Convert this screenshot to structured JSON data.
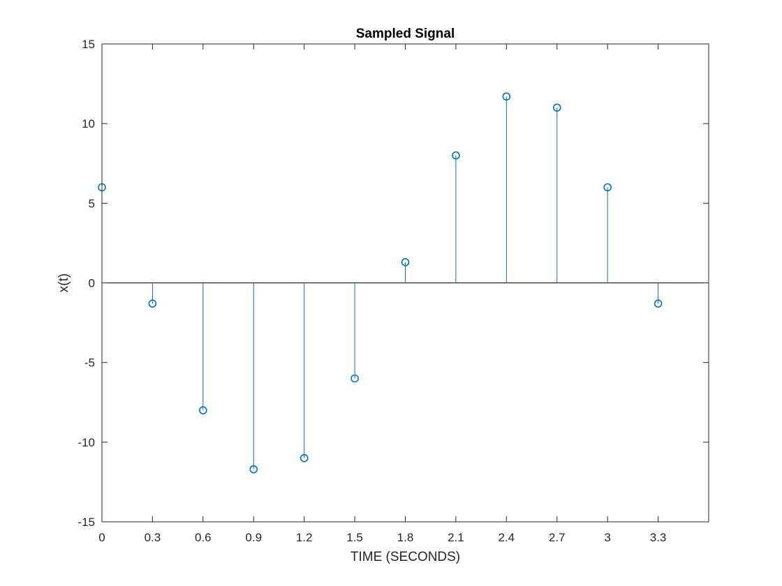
{
  "chart_data": {
    "type": "stem",
    "title": "Sampled Signal",
    "xlabel": "TIME (SECONDS)",
    "ylabel": "x(t)",
    "xlim": [
      0,
      3.6
    ],
    "ylim": [
      -15,
      15
    ],
    "xticks": [
      0,
      0.3,
      0.6,
      0.9,
      1.2,
      1.5,
      1.8,
      2.1,
      2.4,
      2.7,
      3,
      3.3
    ],
    "xtick_labels": [
      "0",
      "0.3",
      "0.6",
      "0.9",
      "1.2",
      "1.5",
      "1.8",
      "2.1",
      "2.4",
      "2.7",
      "3",
      "3.3"
    ],
    "yticks": [
      -15,
      -10,
      -5,
      0,
      5,
      10,
      15
    ],
    "ytick_labels": [
      "-15",
      "-10",
      "-5",
      "0",
      "5",
      "10",
      "15"
    ],
    "grid": false,
    "baseline": 0,
    "series": [
      {
        "color": "#0072BD",
        "marker": "circle-open",
        "x": [
          0,
          0.3,
          0.6,
          0.9,
          1.2,
          1.5,
          1.8,
          2.1,
          2.4,
          2.7,
          3,
          3.3
        ],
        "y": [
          6,
          -1.3,
          -8,
          -11.7,
          -11,
          -6,
          1.3,
          8,
          11.7,
          11,
          6,
          -1.3
        ]
      }
    ]
  }
}
